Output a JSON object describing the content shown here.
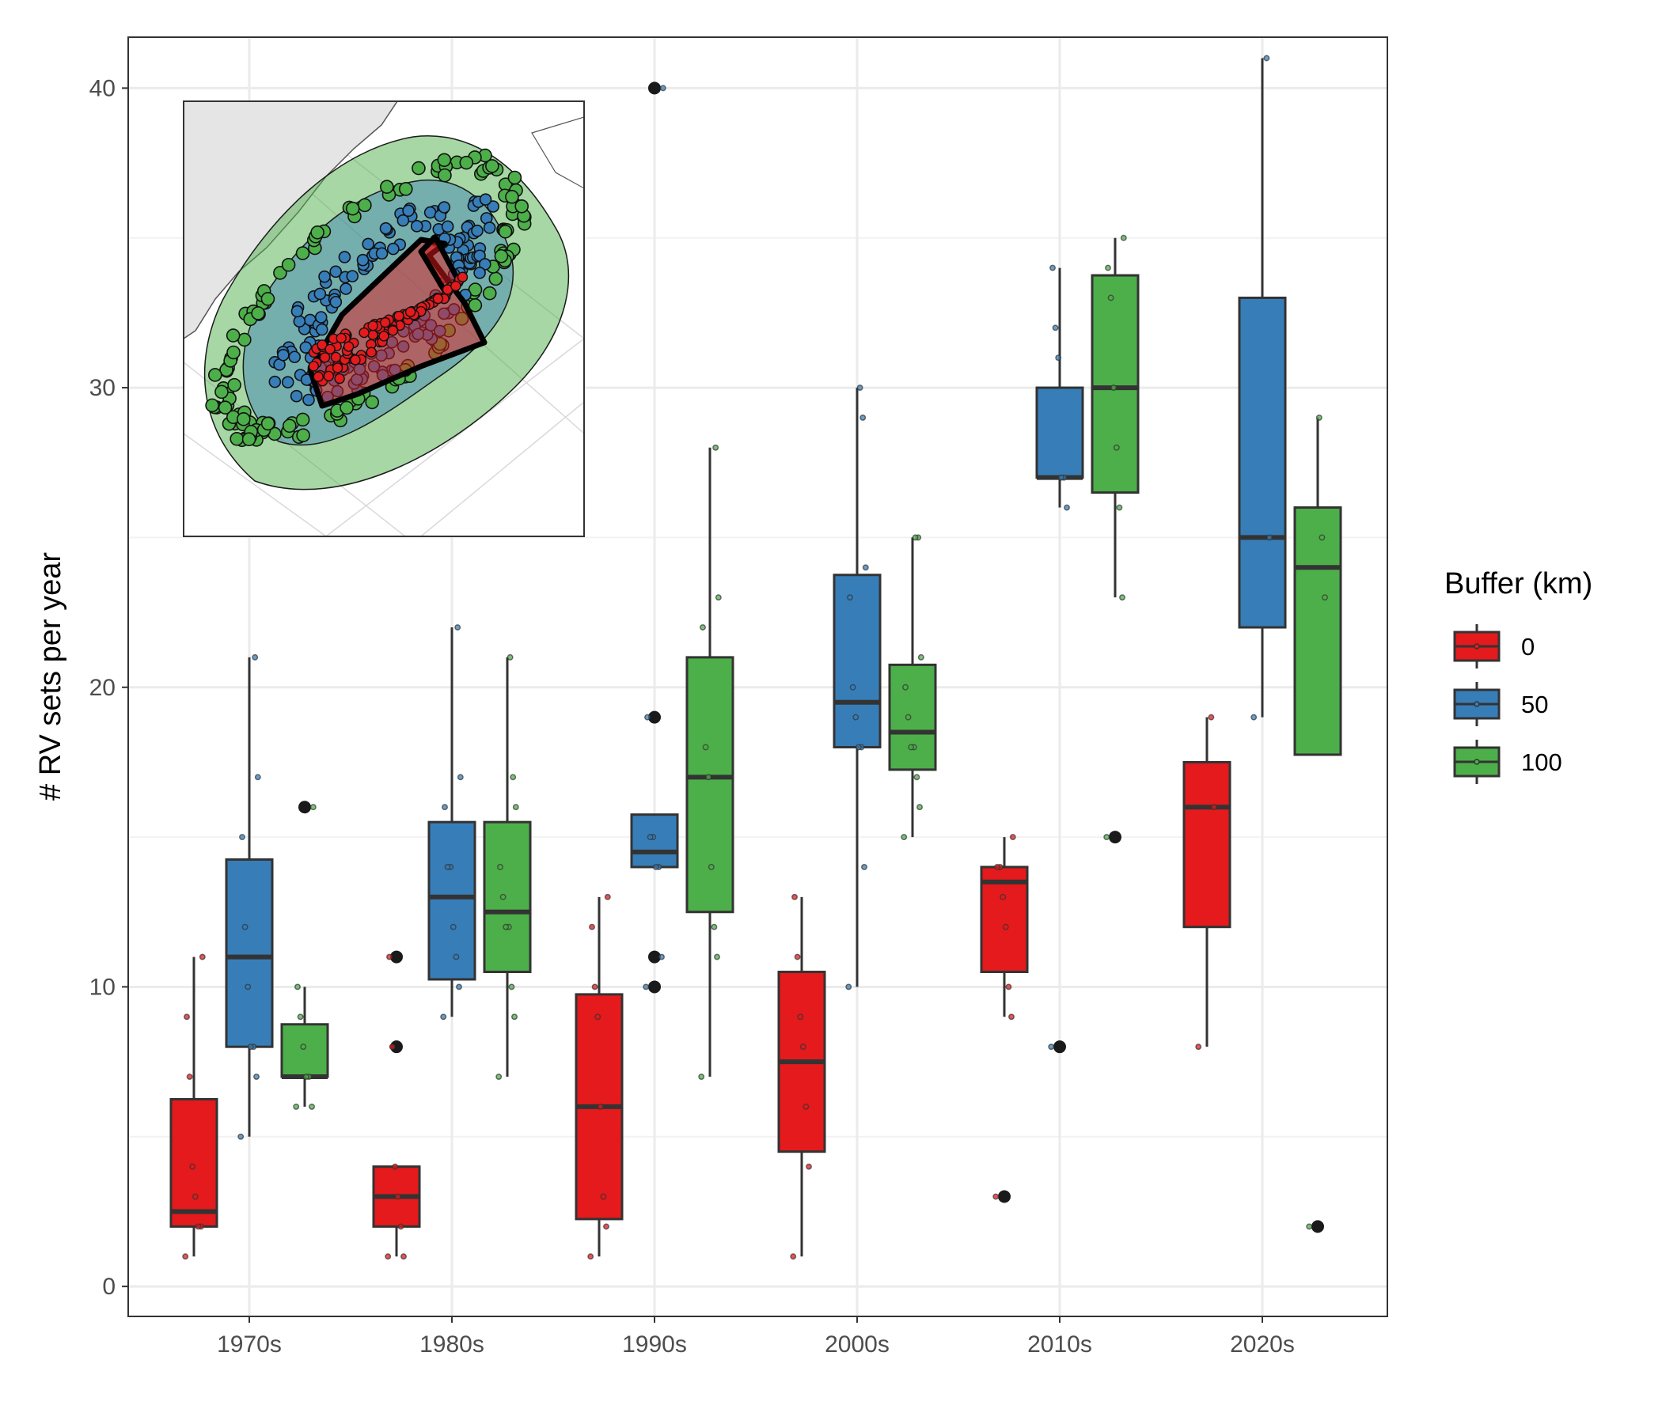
{
  "chart_data": {
    "type": "box",
    "xlabel": "",
    "ylabel": "# RV sets per year",
    "ylim": [
      -1,
      41.7
    ],
    "yticks": [
      0,
      10,
      20,
      30,
      40
    ],
    "categories": [
      "1970s",
      "1980s",
      "1990s",
      "2000s",
      "2010s",
      "2020s"
    ],
    "grid": true,
    "legend": {
      "title": "Buffer (km)",
      "placement": "right",
      "entries": [
        "0",
        "50",
        "100"
      ]
    },
    "colors": {
      "0": "#e41a1c",
      "50": "#377eb8",
      "100": "#4daf4a"
    },
    "series": [
      {
        "name": "0",
        "boxes": [
          {
            "q1": 2,
            "median": 2.5,
            "q3": 6.25,
            "lower": 1,
            "upper": 11,
            "outliers": [],
            "points": [
              1,
              2,
              2,
              3,
              4,
              7,
              9,
              11
            ]
          },
          {
            "q1": 2,
            "median": 3,
            "q3": 4,
            "lower": 1,
            "upper": 4,
            "outliers": [
              8,
              11
            ],
            "points": [
              1,
              1,
              2,
              3,
              4,
              8,
              11
            ]
          },
          {
            "q1": 2.25,
            "median": 6,
            "q3": 9.75,
            "lower": 1,
            "upper": 13,
            "outliers": [],
            "points": [
              1,
              2,
              3,
              6,
              9,
              10,
              12,
              13
            ]
          },
          {
            "q1": 4.5,
            "median": 7.5,
            "q3": 10.5,
            "lower": 1,
            "upper": 13,
            "outliers": [],
            "points": [
              1,
              4,
              6,
              8,
              9,
              11,
              13
            ]
          },
          {
            "q1": 10.5,
            "median": 13.5,
            "q3": 14,
            "lower": 9,
            "upper": 15,
            "outliers": [
              3
            ],
            "points": [
              3,
              9,
              10,
              12,
              13,
              14,
              14,
              15
            ]
          },
          {
            "q1": 12,
            "median": 16,
            "q3": 17.5,
            "lower": 8,
            "upper": 19,
            "outliers": [],
            "points": [
              8,
              16,
              19
            ]
          }
        ]
      },
      {
        "name": "50",
        "boxes": [
          {
            "q1": 8,
            "median": 11,
            "q3": 14.25,
            "lower": 5,
            "upper": 21,
            "outliers": [],
            "points": [
              5,
              7,
              8,
              8,
              10,
              12,
              15,
              17,
              21
            ]
          },
          {
            "q1": 10.25,
            "median": 13,
            "q3": 15.5,
            "lower": 9,
            "upper": 22,
            "outliers": [],
            "points": [
              9,
              10,
              11,
              12,
              14,
              14,
              16,
              17,
              22
            ]
          },
          {
            "q1": 14,
            "median": 14.5,
            "q3": 15.75,
            "lower": 14,
            "upper": 15.75,
            "outliers": [
              10,
              11,
              19,
              40
            ],
            "points": [
              10,
              11,
              14,
              14,
              15,
              15,
              19,
              40
            ]
          },
          {
            "q1": 18,
            "median": 19.5,
            "q3": 23.75,
            "lower": 10,
            "upper": 30,
            "outliers": [],
            "points": [
              10,
              14,
              18,
              18,
              19,
              20,
              23,
              24,
              29,
              30
            ]
          },
          {
            "q1": 27,
            "median": 27,
            "q3": 30,
            "lower": 26,
            "upper": 34,
            "outliers": [
              8
            ],
            "points": [
              8,
              26,
              27,
              27,
              31,
              32,
              34
            ]
          },
          {
            "q1": 22,
            "median": 25,
            "q3": 33,
            "lower": 19,
            "upper": 41,
            "outliers": [],
            "points": [
              19,
              25,
              41
            ]
          }
        ]
      },
      {
        "name": "100",
        "boxes": [
          {
            "q1": 7,
            "median": 7,
            "q3": 8.75,
            "lower": 6,
            "upper": 10,
            "outliers": [
              16
            ],
            "points": [
              6,
              6,
              7,
              7,
              8,
              9,
              10,
              16
            ]
          },
          {
            "q1": 10.5,
            "median": 12.5,
            "q3": 15.5,
            "lower": 7,
            "upper": 21,
            "outliers": [],
            "points": [
              7,
              9,
              10,
              12,
              12,
              13,
              14,
              16,
              17,
              21
            ]
          },
          {
            "q1": 12.5,
            "median": 17,
            "q3": 21,
            "lower": 7,
            "upper": 28,
            "outliers": [],
            "points": [
              7,
              11,
              12,
              14,
              17,
              18,
              22,
              23,
              28
            ]
          },
          {
            "q1": 17.25,
            "median": 18.5,
            "q3": 20.75,
            "lower": 15,
            "upper": 25,
            "outliers": [],
            "points": [
              15,
              16,
              17,
              18,
              18,
              19,
              20,
              21,
              25,
              25
            ]
          },
          {
            "q1": 26.5,
            "median": 30,
            "q3": 33.75,
            "lower": 23,
            "upper": 35,
            "outliers": [
              15
            ],
            "points": [
              15,
              23,
              26,
              28,
              30,
              33,
              34,
              35
            ]
          },
          {
            "q1": 17.75,
            "median": 24,
            "q3": 26,
            "lower": 17.75,
            "upper": 29,
            "outliers": [
              2
            ],
            "points": [
              2,
              23,
              25,
              29
            ]
          }
        ]
      }
    ]
  },
  "inset_map": {
    "land_color": "#e5e5e5",
    "zone_colors": {
      "0": "#e41a1c",
      "50": "#377eb8",
      "100": "#4daf4a"
    }
  }
}
